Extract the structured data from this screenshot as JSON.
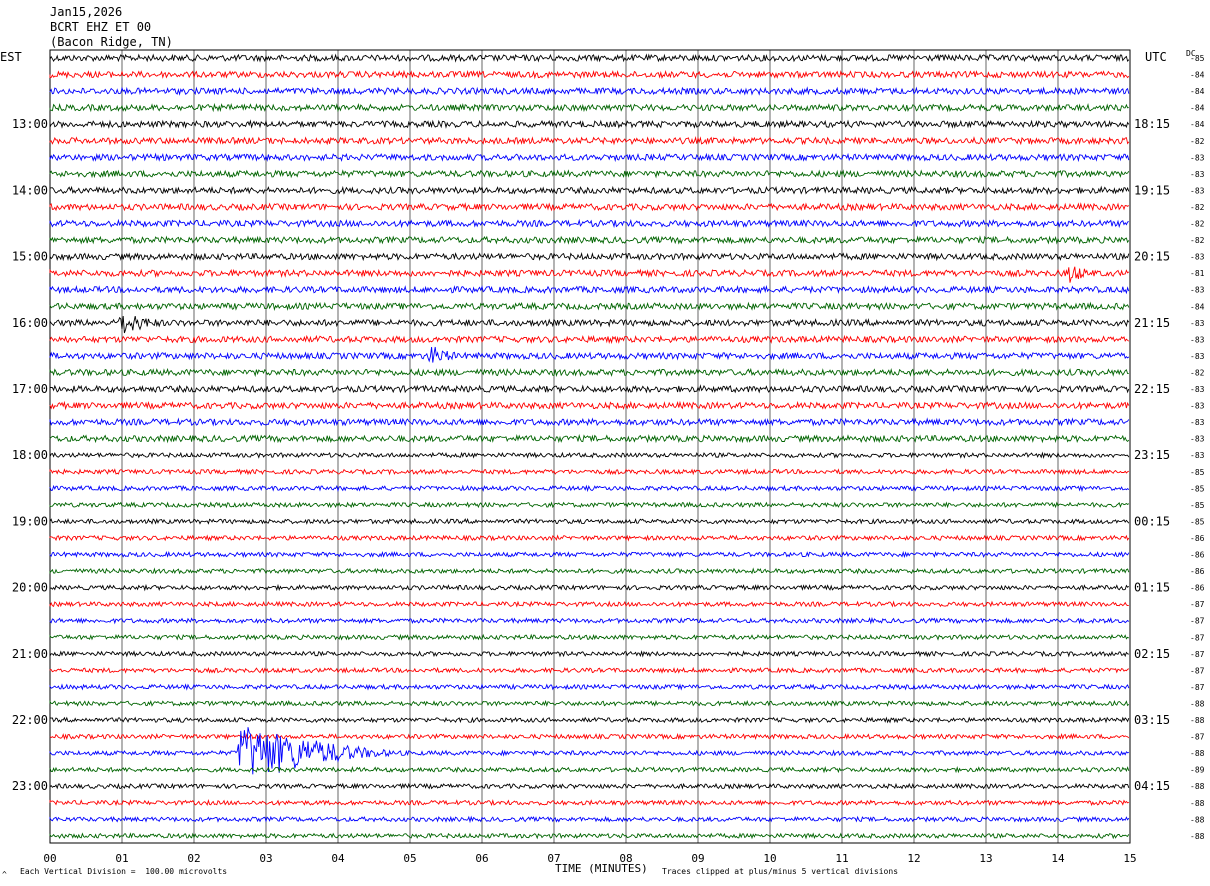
{
  "header": {
    "date": "Jan15,2026",
    "station": "BCRT EHZ ET 00",
    "location": "(Bacon Ridge, TN)"
  },
  "left_axis_title": "EST",
  "right_axis_title": "UTC",
  "dc_title": "DC",
  "footer": {
    "scale": "Each Vertical Division =  100.00 microvolts",
    "clip": "Traces clipped at plus/minus 5 vertical divisions",
    "corner_mark": "^"
  },
  "chart_data": {
    "type": "line",
    "title": "BCRT EHZ ET 00 (Bacon Ridge, TN) Jan15,2026",
    "xlabel": "TIME (MINUTES)",
    "x_ticks": [
      "00",
      "01",
      "02",
      "03",
      "04",
      "05",
      "06",
      "07",
      "08",
      "09",
      "10",
      "11",
      "12",
      "13",
      "14",
      "15"
    ],
    "xlim": [
      0,
      15
    ],
    "grid": true,
    "trace_colors": [
      "#000000",
      "#ff0000",
      "#0000ff",
      "#006400"
    ],
    "left_hour_labels": [
      "13:00",
      "14:00",
      "15:00",
      "16:00",
      "17:00",
      "18:00",
      "19:00",
      "20:00",
      "21:00",
      "22:00",
      "23:00"
    ],
    "right_hour_labels": [
      "18:15",
      "19:15",
      "20:15",
      "21:15",
      "22:15",
      "23:15",
      "00:15",
      "01:15",
      "02:15",
      "03:15",
      "04:15"
    ],
    "dc_offsets": [
      "-85",
      "-84",
      "-84",
      "-84",
      "-84",
      "-82",
      "-83",
      "-83",
      "-83",
      "-82",
      "-82",
      "-82",
      "-83",
      "-81",
      "-83",
      "-84",
      "-83",
      "-83",
      "-83",
      "-82",
      "-83",
      "-83",
      "-83",
      "-83",
      "-83",
      "-85",
      "-85",
      "-85",
      "-85",
      "-86",
      "-86",
      "-86",
      "-86",
      "-87",
      "-87",
      "-87",
      "-87",
      "-87",
      "-87",
      "-88",
      "-88",
      "-87",
      "-88",
      "-89",
      "-88",
      "-88",
      "-88",
      "-88"
    ],
    "events": [
      {
        "trace": 16,
        "start_min": 0.95,
        "end_min": 1.6,
        "amplitude": 10
      },
      {
        "trace": 18,
        "start_min": 5.25,
        "end_min": 5.7,
        "amplitude": 9
      },
      {
        "trace": 42,
        "start_min": 2.6,
        "end_min": 5.0,
        "amplitude": 28
      },
      {
        "trace": 13,
        "start_min": 14.15,
        "end_min": 14.5,
        "amplitude": 8
      }
    ]
  }
}
